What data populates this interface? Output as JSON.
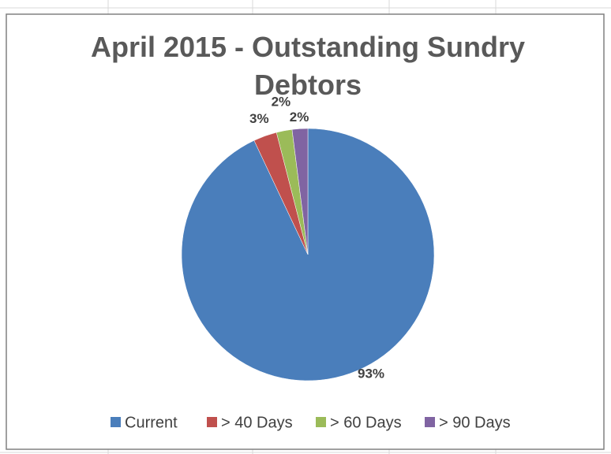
{
  "chart_data": {
    "type": "pie",
    "title": "April 2015 - Outstanding Sundry Debtors",
    "categories": [
      "Current",
      "> 40 Days",
      "> 60 Days",
      "> 90 Days"
    ],
    "values": [
      93,
      3,
      2,
      2
    ],
    "value_labels": [
      "93%",
      "3%",
      "2%",
      "2%"
    ],
    "colors": [
      "#4a7ebb",
      "#c0504d",
      "#9bbb59",
      "#8064a2"
    ],
    "legend": "bottom"
  }
}
